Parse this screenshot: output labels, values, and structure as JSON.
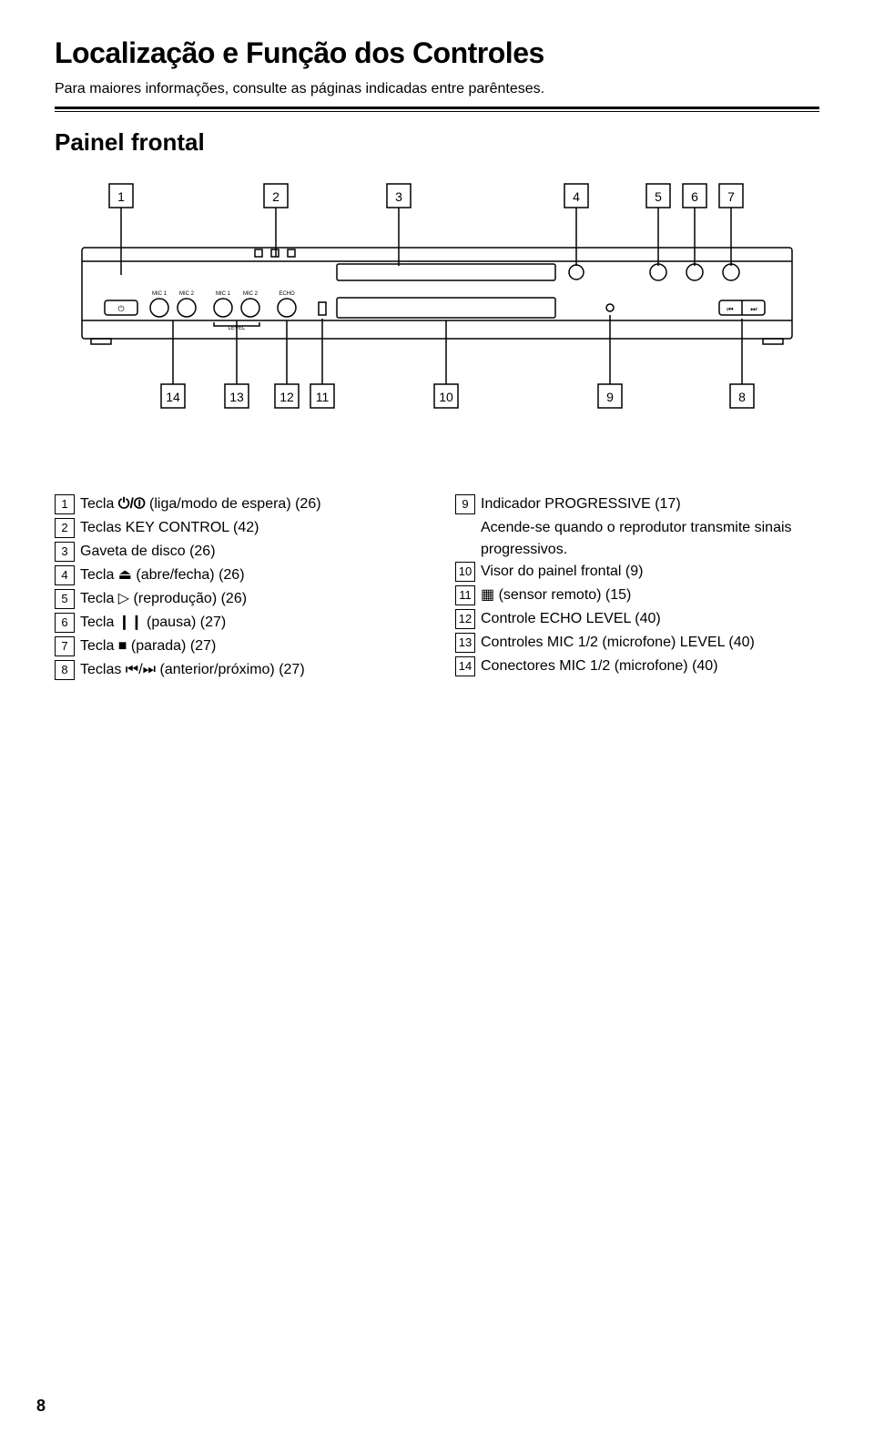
{
  "title": "Localização e Função dos Controles",
  "subtitle": "Para maiores informações, consulte as páginas indicadas entre parênteses.",
  "section_heading": "Painel frontal",
  "page_number": "8",
  "colors": {
    "text": "#000000",
    "bg": "#ffffff",
    "line": "#000000"
  },
  "diagram": {
    "top_callouts": [
      "1",
      "2",
      "3",
      "4",
      "5",
      "6",
      "7"
    ],
    "bottom_callouts_left": [
      "14",
      "13",
      "12",
      "11"
    ],
    "bottom_callout_mid": "10",
    "bottom_callouts_right": [
      "9",
      "8"
    ],
    "labels": {
      "mic1a": "MIC 1",
      "mic2a": "MIC 2",
      "mic1b": "MIC 1",
      "mic2b": "MIC 2",
      "echo": "ECHO",
      "level": "LEVEL"
    }
  },
  "legend_left": [
    {
      "n": "1",
      "html": "Tecla <b>&#x23FB;/&#x23FC;</b> (liga/modo de espera) (26)"
    },
    {
      "n": "2",
      "html": "Teclas KEY CONTROL (42)"
    },
    {
      "n": "3",
      "html": "Gaveta de disco (26)"
    },
    {
      "n": "4",
      "html": "Tecla &#x23CF; (abre/fecha) (26)"
    },
    {
      "n": "5",
      "html": "Tecla &#x25B7; (reprodução) (26)"
    },
    {
      "n": "6",
      "html": "Tecla &#x2759;&#x2759; (pausa) (27)"
    },
    {
      "n": "7",
      "html": "Tecla &#x25A0; (parada) (27)"
    },
    {
      "n": "8",
      "html": "Teclas &#x23EE;/&#x23ED; (anterior/próximo) (27)"
    }
  ],
  "legend_right": [
    {
      "n": "9",
      "html": "Indicador PROGRESSIVE (17)",
      "sub": "Acende-se quando o reprodutor transmite sinais progressivos."
    },
    {
      "n": "10",
      "html": "Visor do painel frontal (9)"
    },
    {
      "n": "11",
      "html": "&#x25A6; (sensor remoto) (15)"
    },
    {
      "n": "12",
      "html": "Controle ECHO LEVEL (40)"
    },
    {
      "n": "13",
      "html": "Controles MIC 1/2 (microfone) LEVEL (40)"
    },
    {
      "n": "14",
      "html": "Conectores MIC 1/2 (microfone) (40)"
    }
  ]
}
